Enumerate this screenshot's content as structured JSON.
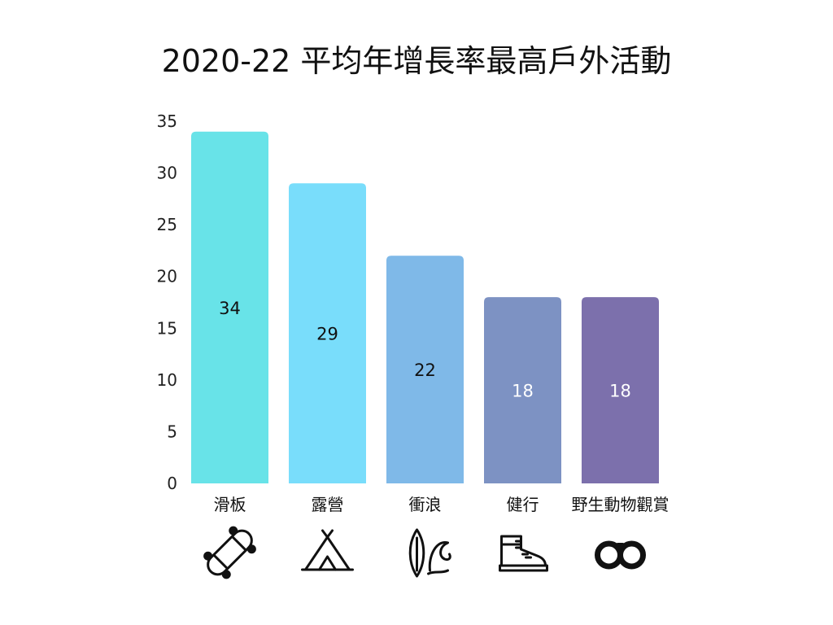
{
  "chart_data": {
    "type": "bar",
    "title": "2020-22 平均年增長率最高戶外活動",
    "xlabel": "",
    "ylabel": "",
    "categories": [
      "滑板",
      "露營",
      "衝浪",
      "健行",
      "野生動物觀賞"
    ],
    "values": [
      34,
      29,
      22,
      18,
      18
    ],
    "data_labels": [
      "34",
      "29",
      "22",
      "18",
      "18"
    ],
    "ylim": [
      0,
      35
    ],
    "yticks": [
      0,
      5,
      10,
      15,
      20,
      25,
      30,
      35
    ],
    "grid": false,
    "legend": "none",
    "bar_colors": [
      "#68e3e8",
      "#79ddfb",
      "#7fb9e8",
      "#7d92c3",
      "#7c70ac"
    ],
    "data_label_colors": [
      "#111111",
      "#111111",
      "#111111",
      "#ffffff",
      "#ffffff"
    ],
    "category_icons": [
      "skateboard-icon",
      "tent-icon",
      "surfboard-wave-icon",
      "hiking-boot-icon",
      "binoculars-icon"
    ]
  }
}
